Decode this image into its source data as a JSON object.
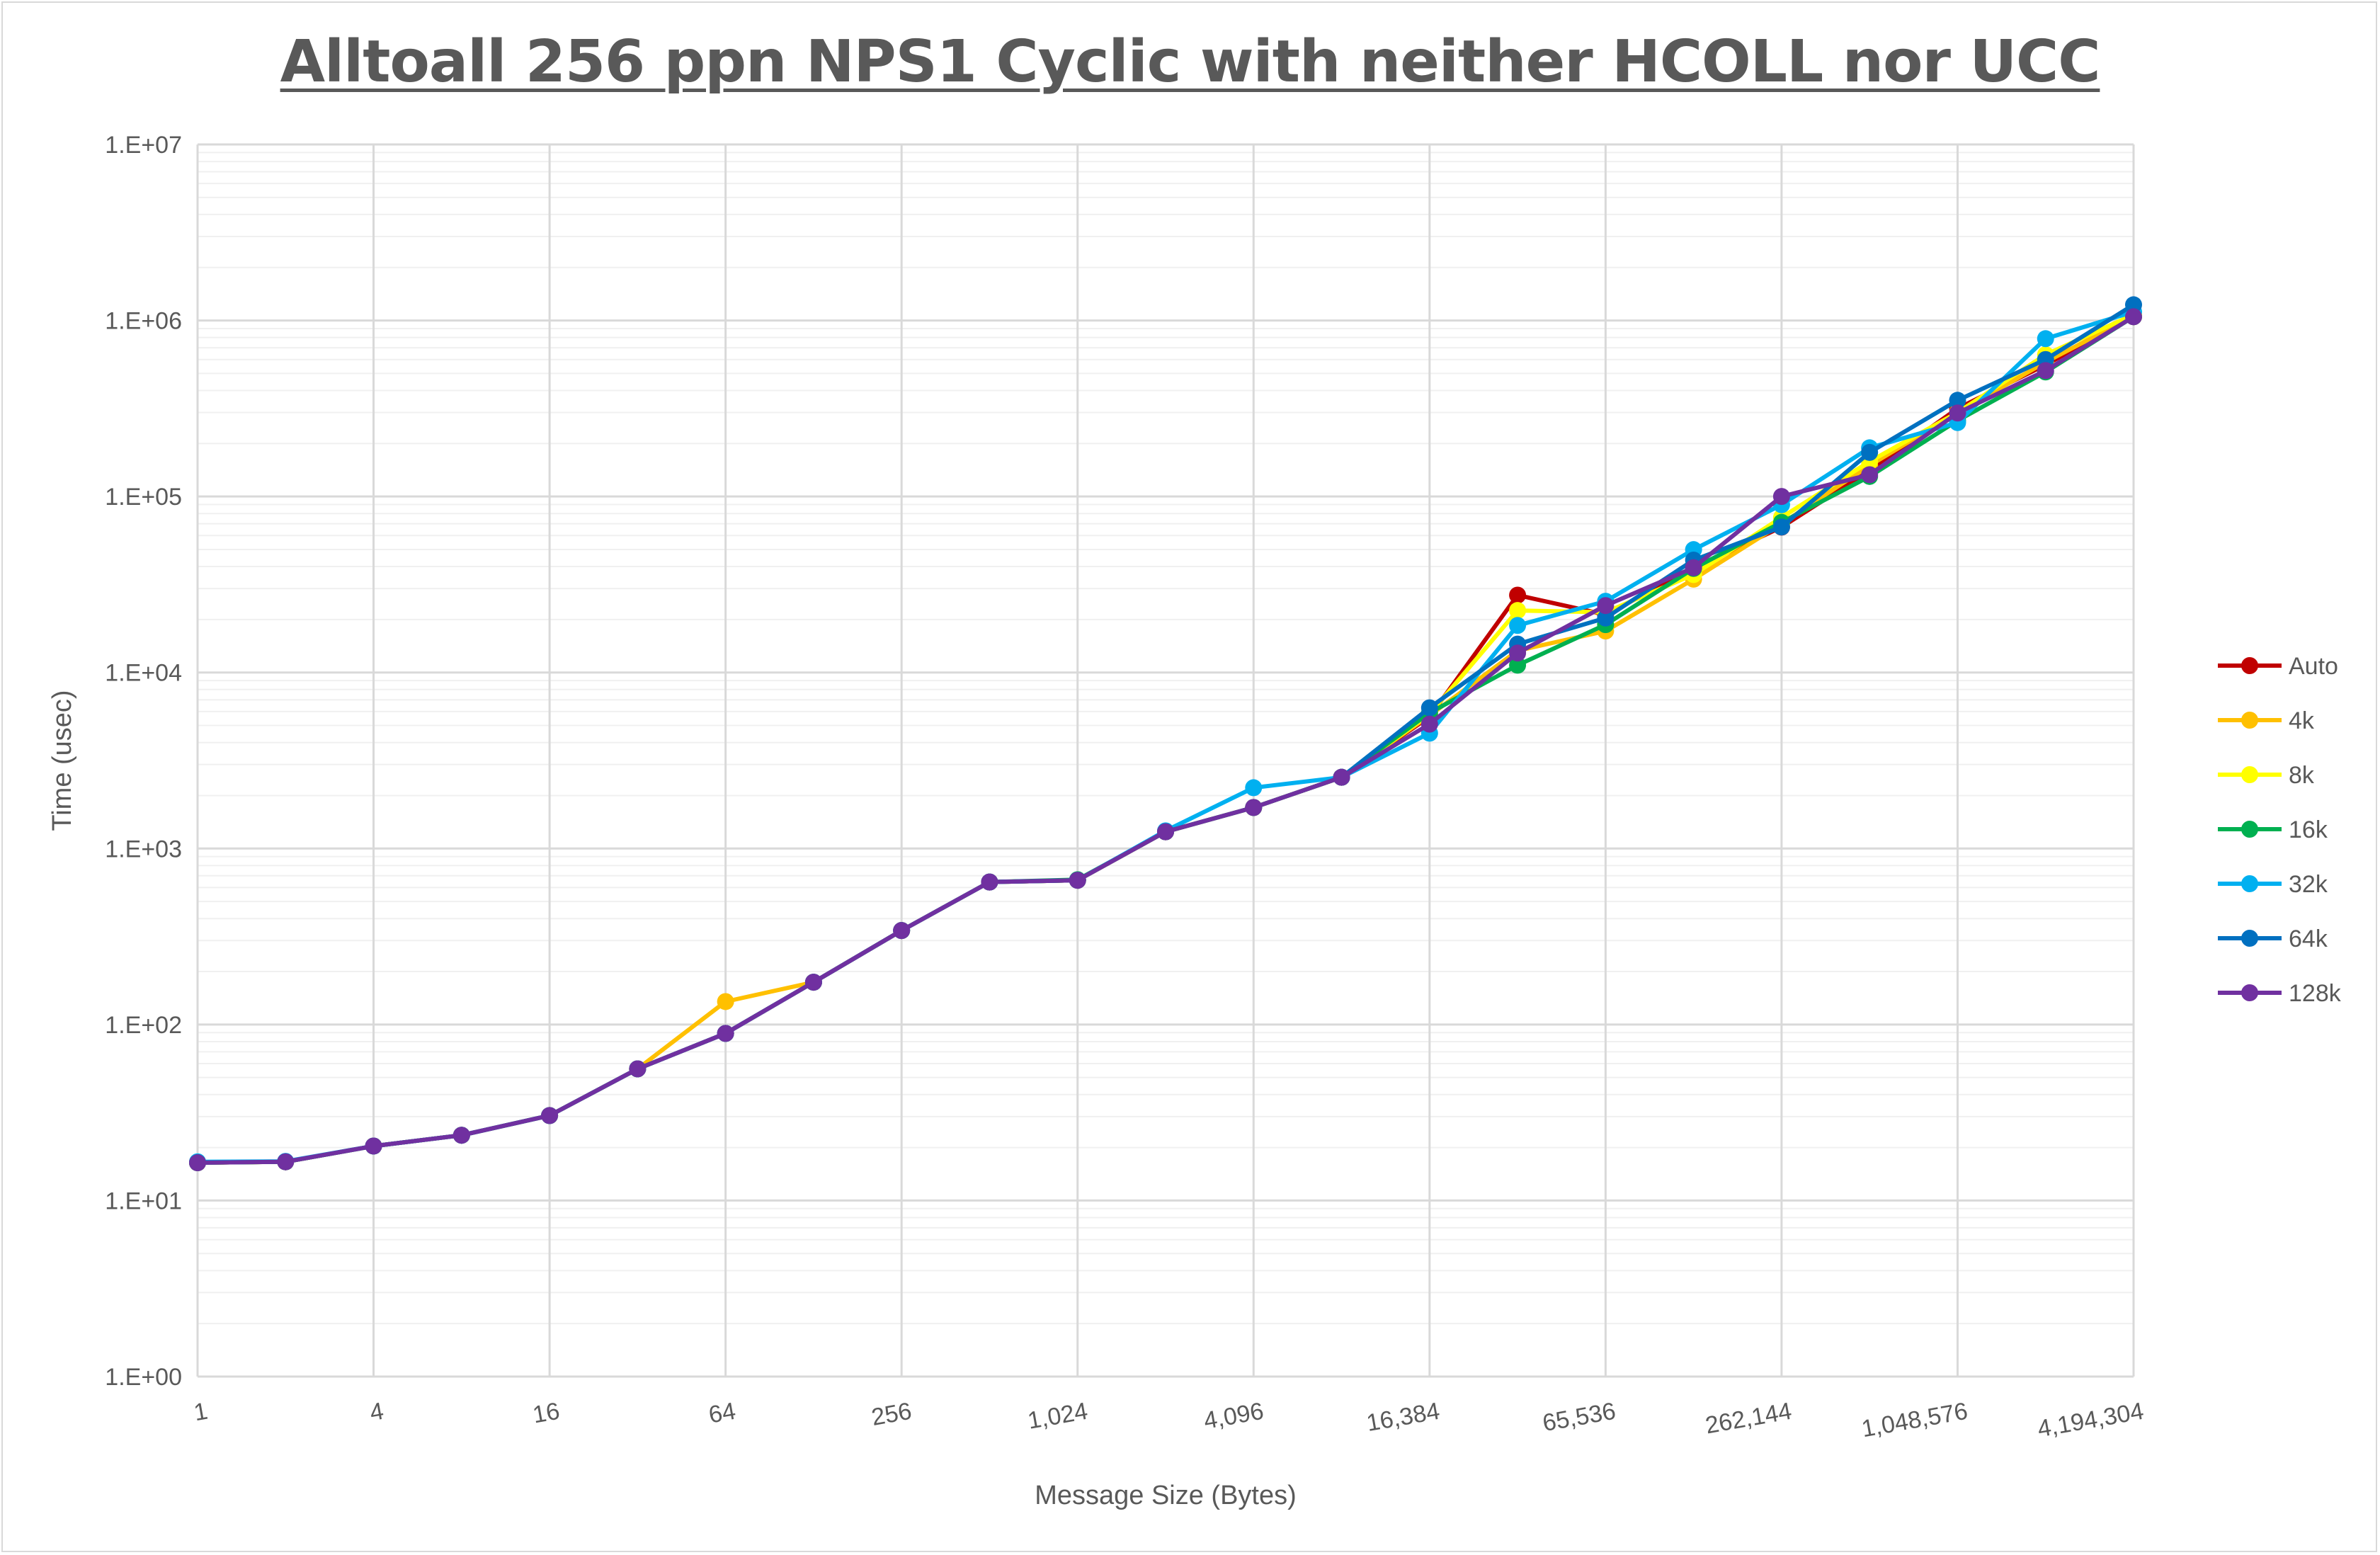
{
  "chart_data": {
    "type": "line",
    "title": "Alltoall 256 ppn NPS1 Cyclic with neither HCOLL nor UCC",
    "xlabel": "Message Size (Bytes)",
    "ylabel": "Time (usec)",
    "x_scale": "log2",
    "y_scale": "log10",
    "xlim": [
      1,
      4194304
    ],
    "ylim": [
      1,
      10000000
    ],
    "grid": true,
    "legend_position": "right",
    "x": [
      1,
      2,
      4,
      8,
      16,
      32,
      64,
      128,
      256,
      512,
      1024,
      2048,
      4096,
      8192,
      16384,
      32768,
      65536,
      131072,
      262144,
      524288,
      1048576,
      2097152,
      4194304
    ],
    "x_tick_labels": [
      "1",
      "4",
      "16",
      "64",
      "256",
      "1,024",
      "4,096",
      "16,384",
      "65,536",
      "262,144",
      "1,048,576",
      "4,194,304"
    ],
    "y_tick_labels": [
      "1.E+00",
      "1.E+01",
      "1.E+02",
      "1.E+03",
      "1.E+04",
      "1.E+05",
      "1.E+06",
      "1.E+07"
    ],
    "series": [
      {
        "name": "Auto",
        "color": "#C00000",
        "values": [
          16.4,
          16.6,
          20.4,
          23.5,
          30.4,
          56,
          89,
          174,
          342,
          645,
          660,
          1245,
          1710,
          2540,
          5600,
          27500,
          21300,
          39000,
          67000,
          140000,
          316000,
          560000,
          1050000
        ]
      },
      {
        "name": "4k",
        "color": "#FFC000",
        "values": [
          16.4,
          16.6,
          20.4,
          23.5,
          30.4,
          56,
          135,
          174,
          342,
          645,
          660,
          1245,
          1710,
          2540,
          5700,
          13300,
          17200,
          33900,
          70000,
          150000,
          300000,
          580000,
          1060000
        ]
      },
      {
        "name": "8k",
        "color": "#FFFF00",
        "values": [
          16.4,
          16.6,
          20.4,
          23.5,
          30.4,
          56,
          89,
          174,
          342,
          645,
          660,
          1245,
          1710,
          2540,
          5800,
          22500,
          22000,
          36000,
          76000,
          158000,
          300000,
          639000,
          1080000
        ]
      },
      {
        "name": "16k",
        "color": "#00B050",
        "values": [
          16.4,
          16.6,
          20.4,
          23.5,
          30.4,
          56,
          89,
          174,
          342,
          645,
          665,
          1245,
          1710,
          2540,
          5900,
          11000,
          18700,
          39000,
          71300,
          130000,
          270000,
          510000,
          1050000
        ]
      },
      {
        "name": "32k",
        "color": "#00B0F0",
        "values": [
          16.6,
          16.7,
          20.4,
          23.5,
          30.4,
          56,
          89,
          174,
          342,
          645,
          660,
          1260,
          2215,
          2540,
          4520,
          18500,
          25400,
          49900,
          89800,
          189000,
          263000,
          788000,
          1120000
        ]
      },
      {
        "name": "64k",
        "color": "#0070C0",
        "values": [
          16.4,
          16.6,
          20.4,
          23.5,
          30.4,
          56,
          89,
          174,
          342,
          645,
          660,
          1245,
          1710,
          2540,
          6300,
          14500,
          20400,
          43500,
          67100,
          178000,
          352000,
          600000,
          1228000
        ]
      },
      {
        "name": "128k",
        "color": "#7030A0",
        "values": [
          16.4,
          16.6,
          20.4,
          23.5,
          30.4,
          56,
          89,
          174,
          342,
          645,
          660,
          1245,
          1710,
          2540,
          5090,
          12900,
          24000,
          39400,
          100000,
          133000,
          298000,
          519000,
          1050000
        ]
      }
    ]
  }
}
